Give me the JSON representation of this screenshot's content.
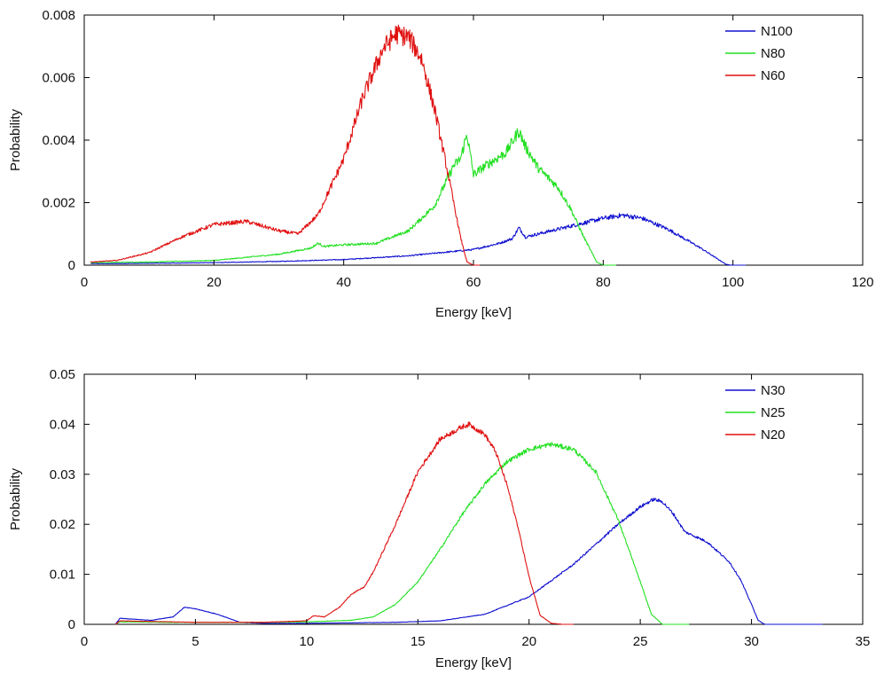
{
  "colors": {
    "blue": "#1010d0",
    "green": "#22e022",
    "red": "#e01010"
  },
  "chart_data": [
    {
      "type": "line",
      "xlabel": "Energy [keV]",
      "ylabel": "Probability",
      "xlim": [
        0,
        120
      ],
      "ylim": [
        0,
        0.008
      ],
      "xticks": [
        "0",
        "20",
        "40",
        "60",
        "80",
        "100",
        "120"
      ],
      "yticks": [
        "0",
        "0.002",
        "0.004",
        "0.006",
        "0.008"
      ],
      "grid": false,
      "legend_position": "top-right",
      "series": [
        {
          "name": "N100",
          "color": "blue",
          "x": [
            1,
            5,
            10,
            20,
            30,
            40,
            50,
            55,
            60,
            64,
            66,
            67,
            68,
            70,
            75,
            80,
            83,
            86,
            90,
            95,
            98,
            99,
            100,
            102
          ],
          "y": [
            5e-05,
            5e-05,
            6e-05,
            8e-05,
            0.00012,
            0.00018,
            0.0003,
            0.0004,
            0.0005,
            0.0007,
            0.00085,
            0.0012,
            0.0009,
            0.001,
            0.00125,
            0.0015,
            0.0016,
            0.0015,
            0.00115,
            0.00055,
            0.00015,
            2e-05,
            0,
            0
          ]
        },
        {
          "name": "N80",
          "color": "green",
          "x": [
            1,
            10,
            20,
            30,
            35,
            36,
            37,
            40,
            45,
            50,
            54,
            57,
            58,
            59,
            60,
            62,
            65,
            67,
            68,
            70,
            73,
            75,
            77,
            79,
            80,
            82
          ],
          "y": [
            8e-05,
            0.0001,
            0.00015,
            0.00035,
            0.00055,
            0.0007,
            0.0006,
            0.00065,
            0.0007,
            0.0011,
            0.0019,
            0.0032,
            0.0034,
            0.0042,
            0.0029,
            0.0032,
            0.0036,
            0.0043,
            0.0038,
            0.0031,
            0.0025,
            0.0018,
            0.0009,
            0.0001,
            0,
            0
          ]
        },
        {
          "name": "N60",
          "color": "red",
          "x": [
            1,
            5,
            10,
            15,
            20,
            25,
            30,
            33,
            36,
            40,
            43,
            46,
            48,
            50,
            52,
            54,
            56,
            58,
            59,
            60,
            61
          ],
          "y": [
            0.0001,
            0.00015,
            0.0004,
            0.0009,
            0.0013,
            0.0014,
            0.0011,
            0.001,
            0.0016,
            0.0034,
            0.0054,
            0.0069,
            0.0074,
            0.0073,
            0.0066,
            0.005,
            0.003,
            0.0009,
            0.0001,
            0,
            0
          ]
        }
      ]
    },
    {
      "type": "line",
      "xlabel": "Energy [keV]",
      "ylabel": "Probability",
      "xlim": [
        0,
        35
      ],
      "ylim": [
        0,
        0.05
      ],
      "xticks": [
        "0",
        "5",
        "10",
        "15",
        "20",
        "25",
        "30",
        "35"
      ],
      "yticks": [
        "0",
        "0.01",
        "0.02",
        "0.03",
        "0.04",
        "0.05"
      ],
      "grid": false,
      "legend_position": "top-right",
      "series": [
        {
          "name": "N30",
          "color": "blue",
          "x": [
            1.4,
            1.6,
            3,
            4,
            4.5,
            5,
            6,
            7,
            8,
            10,
            14,
            16,
            18,
            20,
            22,
            24,
            25,
            25.6,
            26,
            26.5,
            27,
            28,
            29,
            29.5,
            30,
            30.3,
            30.6,
            33.2
          ],
          "y": [
            0,
            0.0012,
            0.0008,
            0.0015,
            0.0034,
            0.0031,
            0.002,
            0.0004,
            0.0002,
            0.0002,
            0.0004,
            0.0007,
            0.002,
            0.0055,
            0.012,
            0.02,
            0.0235,
            0.025,
            0.0245,
            0.022,
            0.0185,
            0.0165,
            0.0125,
            0.009,
            0.004,
            0.0008,
            0,
            0
          ]
        },
        {
          "name": "N25",
          "color": "green",
          "x": [
            1.4,
            1.6,
            4,
            6,
            8,
            10,
            12,
            13,
            14,
            15,
            16,
            17,
            18,
            19,
            20,
            21,
            22,
            23,
            24,
            25,
            25.5,
            26,
            27.2
          ],
          "y": [
            0,
            0.0005,
            0.0004,
            0.0004,
            0.0004,
            0.0005,
            0.0008,
            0.0015,
            0.004,
            0.0085,
            0.015,
            0.022,
            0.028,
            0.0325,
            0.035,
            0.036,
            0.035,
            0.0305,
            0.021,
            0.0085,
            0.002,
            0,
            0
          ]
        },
        {
          "name": "N20",
          "color": "red",
          "x": [
            1.4,
            1.6,
            5,
            8,
            10,
            10.3,
            10.8,
            11.5,
            12,
            12.6,
            13,
            14,
            15,
            16,
            17,
            17.3,
            18,
            18.5,
            19,
            19.5,
            20,
            20.5,
            21,
            21.5,
            22
          ],
          "y": [
            0,
            0.0007,
            0.0004,
            0.0004,
            0.0007,
            0.0017,
            0.0015,
            0.0035,
            0.006,
            0.0075,
            0.0105,
            0.02,
            0.0305,
            0.037,
            0.0395,
            0.04,
            0.038,
            0.0345,
            0.028,
            0.0195,
            0.0095,
            0.0018,
            0.0002,
            0,
            0
          ]
        }
      ]
    }
  ]
}
